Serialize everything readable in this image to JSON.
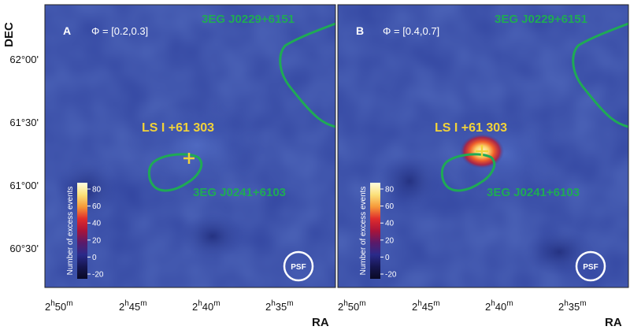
{
  "axes": {
    "y_title": "DEC",
    "x_title": "RA",
    "y_ticks": [
      "62°00'",
      "61°30'",
      "61°00'",
      "60°30'"
    ],
    "x_ticks": [
      {
        "h": "2",
        "m": "50"
      },
      {
        "h": "2",
        "m": "45"
      },
      {
        "h": "2",
        "m": "40"
      },
      {
        "h": "2",
        "m": "35"
      }
    ]
  },
  "colorbar": {
    "title": "Number of excess events",
    "ticks": [
      "80",
      "60",
      "40",
      "20",
      "0",
      "-20"
    ],
    "colors": [
      "#fffde0",
      "#fbe07a",
      "#f69a3a",
      "#e02c2c",
      "#a8143a",
      "#5a1a6a",
      "#2a2a8a",
      "#161650",
      "#0a0a25"
    ]
  },
  "panels": [
    {
      "letter": "A",
      "phase": "Φ = [0.2,0.3]",
      "source_top": "3EG J0229+6151",
      "source_bottom": "3EG J0241+6103",
      "target": "LS I +61 303",
      "psf_label": "PSF",
      "hotspot": false
    },
    {
      "letter": "B",
      "phase": "Φ = [0.4,0.7]",
      "source_top": "3EG J0229+6151",
      "source_bottom": "3EG J0241+6103",
      "target": "LS I +61 303",
      "psf_label": "PSF",
      "hotspot": true
    }
  ],
  "colors": {
    "map_bg": "#3245a0",
    "contour": "#1faa55",
    "target": "#f1d23a"
  }
}
